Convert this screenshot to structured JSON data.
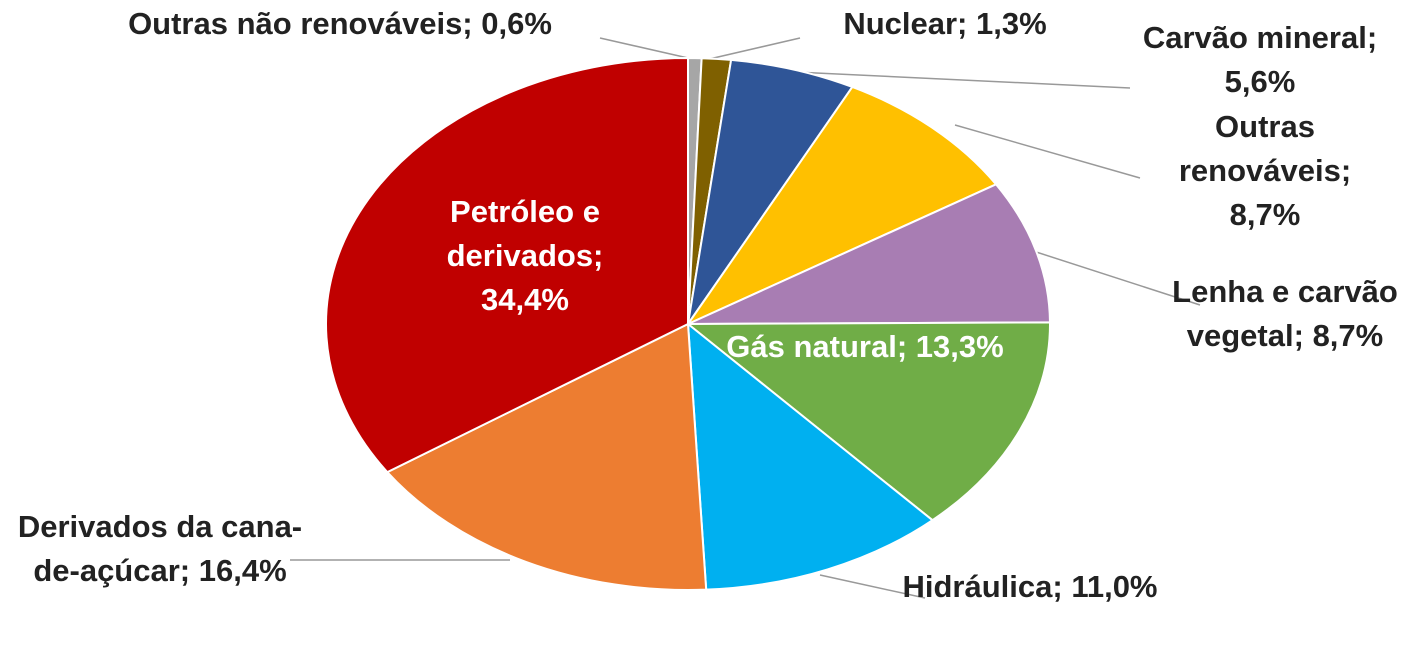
{
  "chart_data": {
    "type": "pie",
    "categories": [
      "Outras não renováveis;",
      "Nuclear;",
      "Carvão mineral;",
      "Outras renováveis;",
      "Lenha e carvão vegetal;",
      "Gás natural;",
      "Hidráulica;",
      "Derivados da cana-de-açúcar;",
      "Petróleo e derivados;"
    ],
    "values": [
      0.6,
      1.3,
      5.6,
      8.7,
      8.7,
      13.3,
      11.0,
      16.4,
      34.4
    ],
    "value_labels": [
      "0,6%",
      "1,3%",
      "5,6%",
      "8,7%",
      "8,7%",
      "13,3%",
      "11,0%",
      "16,4%",
      "34,4%"
    ],
    "colors": [
      "#a6a6a6",
      "#7f6000",
      "#2f5597",
      "#ffc000",
      "#a87db3",
      "#70ad47",
      "#00b0f0",
      "#ed7d31",
      "#c00000"
    ]
  }
}
